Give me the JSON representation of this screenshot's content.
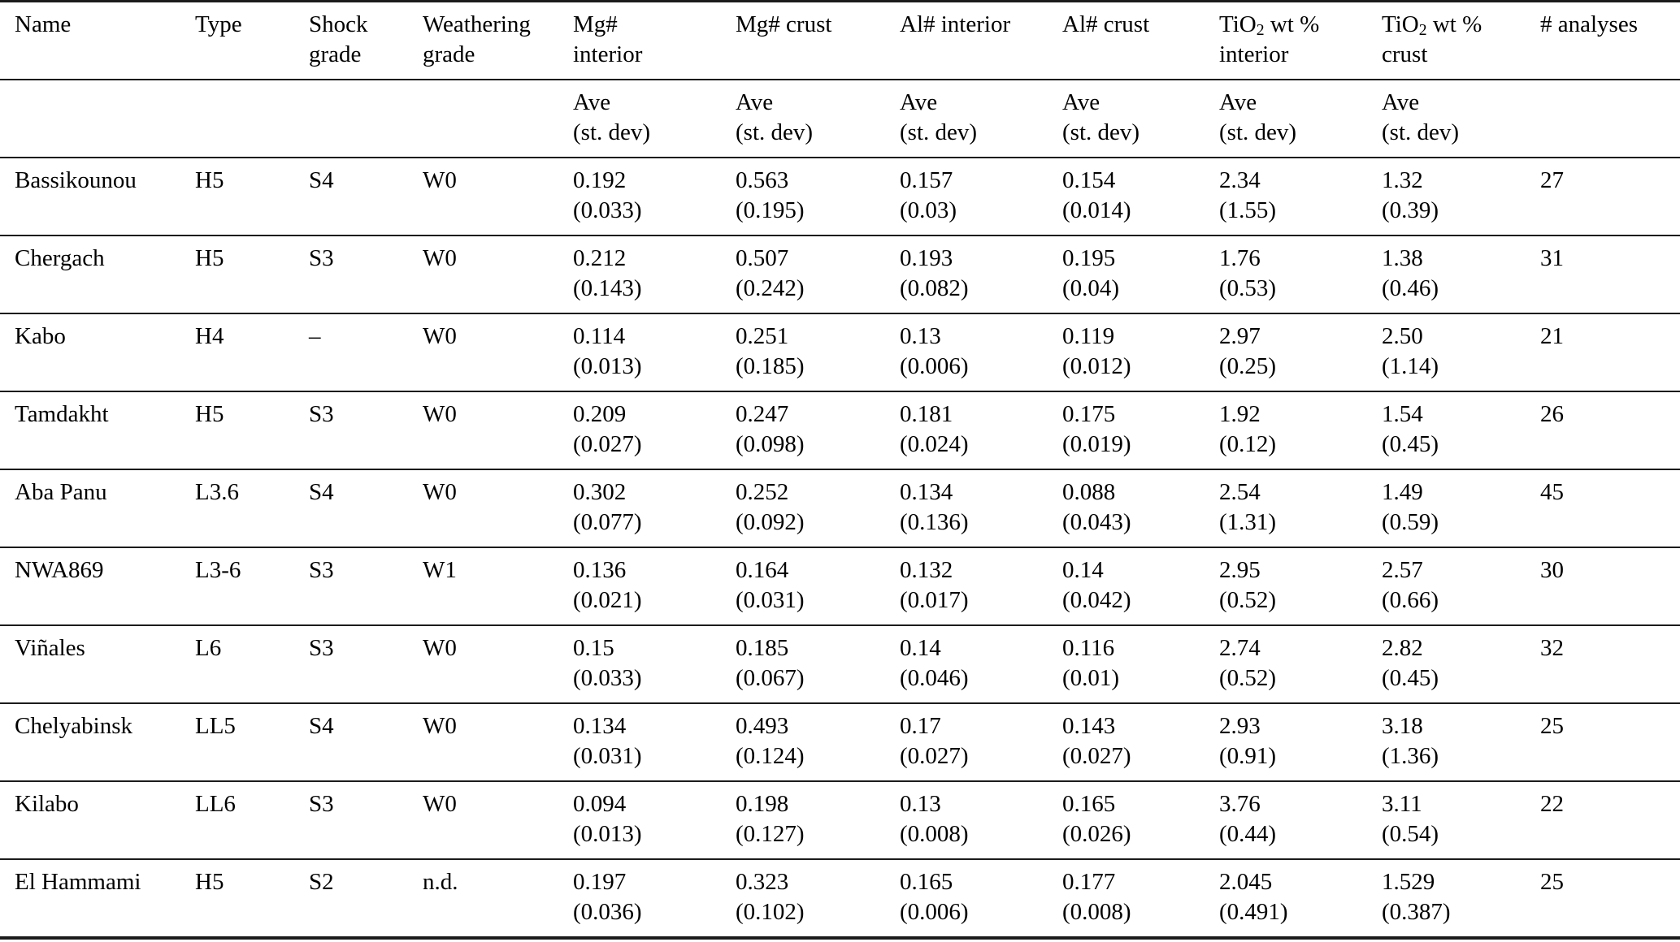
{
  "table": {
    "header": {
      "columns": [
        {
          "key": "name",
          "line1": "Name",
          "line2": ""
        },
        {
          "key": "type",
          "line1": "Type",
          "line2": ""
        },
        {
          "key": "shock-grade",
          "line1": "Shock",
          "line2": "grade"
        },
        {
          "key": "weathering-grade",
          "line1": "Weathering",
          "line2": "grade"
        },
        {
          "key": "mg-interior",
          "line1": "Mg#",
          "line2": "interior"
        },
        {
          "key": "mg-crust",
          "line1": "Mg# crust",
          "line2": ""
        },
        {
          "key": "al-interior",
          "line1": "Al# interior",
          "line2": ""
        },
        {
          "key": "al-crust",
          "line1": "Al# crust",
          "line2": ""
        },
        {
          "key": "tio2-interior",
          "line1": "TiO2 wt %",
          "line2": "interior"
        },
        {
          "key": "tio2-crust",
          "line1": "TiO2 wt %",
          "line2": "crust"
        },
        {
          "key": "analyses",
          "line1": "# analyses",
          "line2": ""
        }
      ]
    },
    "subheader": {
      "line1": "Ave",
      "line2": "(st. dev)",
      "applies_to_columns": [
        4,
        5,
        6,
        7,
        8,
        9
      ]
    },
    "rows": [
      {
        "cells": [
          {
            "value": "Bassikounou"
          },
          {
            "value": "H5"
          },
          {
            "value": "S4"
          },
          {
            "value": "W0"
          },
          {
            "value": "0.192",
            "stdev": "(0.033)"
          },
          {
            "value": "0.563",
            "stdev": "(0.195)"
          },
          {
            "value": "0.157",
            "stdev": "(0.03)"
          },
          {
            "value": "0.154",
            "stdev": "(0.014)"
          },
          {
            "value": "2.34",
            "stdev": "(1.55)"
          },
          {
            "value": "1.32",
            "stdev": "(0.39)"
          },
          {
            "value": "27"
          }
        ]
      },
      {
        "cells": [
          {
            "value": "Chergach"
          },
          {
            "value": "H5"
          },
          {
            "value": "S3"
          },
          {
            "value": "W0"
          },
          {
            "value": "0.212",
            "stdev": "(0.143)"
          },
          {
            "value": "0.507",
            "stdev": "(0.242)"
          },
          {
            "value": "0.193",
            "stdev": "(0.082)"
          },
          {
            "value": "0.195",
            "stdev": "(0.04)"
          },
          {
            "value": "1.76",
            "stdev": "(0.53)"
          },
          {
            "value": "1.38",
            "stdev": "(0.46)"
          },
          {
            "value": "31"
          }
        ]
      },
      {
        "cells": [
          {
            "value": "Kabo"
          },
          {
            "value": "H4"
          },
          {
            "value": "–"
          },
          {
            "value": "W0"
          },
          {
            "value": "0.114",
            "stdev": "(0.013)"
          },
          {
            "value": "0.251",
            "stdev": "(0.185)"
          },
          {
            "value": "0.13",
            "stdev": "(0.006)"
          },
          {
            "value": "0.119",
            "stdev": "(0.012)"
          },
          {
            "value": "2.97",
            "stdev": "(0.25)"
          },
          {
            "value": "2.50",
            "stdev": "(1.14)"
          },
          {
            "value": "21"
          }
        ]
      },
      {
        "cells": [
          {
            "value": "Tamdakht"
          },
          {
            "value": "H5"
          },
          {
            "value": "S3"
          },
          {
            "value": "W0"
          },
          {
            "value": "0.209",
            "stdev": "(0.027)"
          },
          {
            "value": "0.247",
            "stdev": "(0.098)"
          },
          {
            "value": "0.181",
            "stdev": "(0.024)"
          },
          {
            "value": "0.175",
            "stdev": "(0.019)"
          },
          {
            "value": "1.92",
            "stdev": "(0.12)"
          },
          {
            "value": "1.54",
            "stdev": "(0.45)"
          },
          {
            "value": "26"
          }
        ]
      },
      {
        "cells": [
          {
            "value": "Aba Panu"
          },
          {
            "value": "L3.6"
          },
          {
            "value": "S4"
          },
          {
            "value": "W0"
          },
          {
            "value": "0.302",
            "stdev": "(0.077)"
          },
          {
            "value": "0.252",
            "stdev": "(0.092)"
          },
          {
            "value": "0.134",
            "stdev": "(0.136)"
          },
          {
            "value": "0.088",
            "stdev": "(0.043)"
          },
          {
            "value": "2.54",
            "stdev": "(1.31)"
          },
          {
            "value": "1.49",
            "stdev": "(0.59)"
          },
          {
            "value": "45"
          }
        ]
      },
      {
        "cells": [
          {
            "value": "NWA869"
          },
          {
            "value": "L3-6"
          },
          {
            "value": "S3"
          },
          {
            "value": "W1"
          },
          {
            "value": "0.136",
            "stdev": "(0.021)"
          },
          {
            "value": "0.164",
            "stdev": "(0.031)"
          },
          {
            "value": "0.132",
            "stdev": "(0.017)"
          },
          {
            "value": "0.14",
            "stdev": "(0.042)"
          },
          {
            "value": "2.95",
            "stdev": "(0.52)"
          },
          {
            "value": "2.57",
            "stdev": "(0.66)"
          },
          {
            "value": "30"
          }
        ]
      },
      {
        "cells": [
          {
            "value": "Viñales"
          },
          {
            "value": "L6"
          },
          {
            "value": "S3"
          },
          {
            "value": "W0"
          },
          {
            "value": "0.15",
            "stdev": "(0.033)"
          },
          {
            "value": "0.185",
            "stdev": "(0.067)"
          },
          {
            "value": "0.14",
            "stdev": "(0.046)"
          },
          {
            "value": "0.116",
            "stdev": "(0.01)"
          },
          {
            "value": "2.74",
            "stdev": "(0.52)"
          },
          {
            "value": "2.82",
            "stdev": "(0.45)"
          },
          {
            "value": "32"
          }
        ]
      },
      {
        "cells": [
          {
            "value": "Chelyabinsk"
          },
          {
            "value": "LL5"
          },
          {
            "value": "S4"
          },
          {
            "value": "W0"
          },
          {
            "value": "0.134",
            "stdev": "(0.031)"
          },
          {
            "value": "0.493",
            "stdev": "(0.124)"
          },
          {
            "value": "0.17",
            "stdev": "(0.027)"
          },
          {
            "value": "0.143",
            "stdev": "(0.027)"
          },
          {
            "value": "2.93",
            "stdev": "(0.91)"
          },
          {
            "value": "3.18",
            "stdev": "(1.36)"
          },
          {
            "value": "25"
          }
        ]
      },
      {
        "cells": [
          {
            "value": "Kilabo"
          },
          {
            "value": "LL6"
          },
          {
            "value": "S3"
          },
          {
            "value": "W0"
          },
          {
            "value": "0.094",
            "stdev": "(0.013)"
          },
          {
            "value": "0.198",
            "stdev": "(0.127)"
          },
          {
            "value": "0.13",
            "stdev": "(0.008)"
          },
          {
            "value": "0.165",
            "stdev": "(0.026)"
          },
          {
            "value": "3.76",
            "stdev": "(0.44)"
          },
          {
            "value": "3.11",
            "stdev": "(0.54)"
          },
          {
            "value": "22"
          }
        ]
      },
      {
        "cells": [
          {
            "value": "El Hammami"
          },
          {
            "value": "H5"
          },
          {
            "value": "S2"
          },
          {
            "value": "n.d."
          },
          {
            "value": "0.197",
            "stdev": "(0.036)"
          },
          {
            "value": "0.323",
            "stdev": "(0.102)"
          },
          {
            "value": "0.165",
            "stdev": "(0.006)"
          },
          {
            "value": "0.177",
            "stdev": "(0.008)"
          },
          {
            "value": "2.045",
            "stdev": "(0.491)"
          },
          {
            "value": "1.529",
            "stdev": "(0.387)"
          },
          {
            "value": "25"
          }
        ]
      }
    ],
    "colors": {
      "text": "#000000",
      "rule": "#1b1b1b",
      "background": "#ffffff"
    }
  }
}
